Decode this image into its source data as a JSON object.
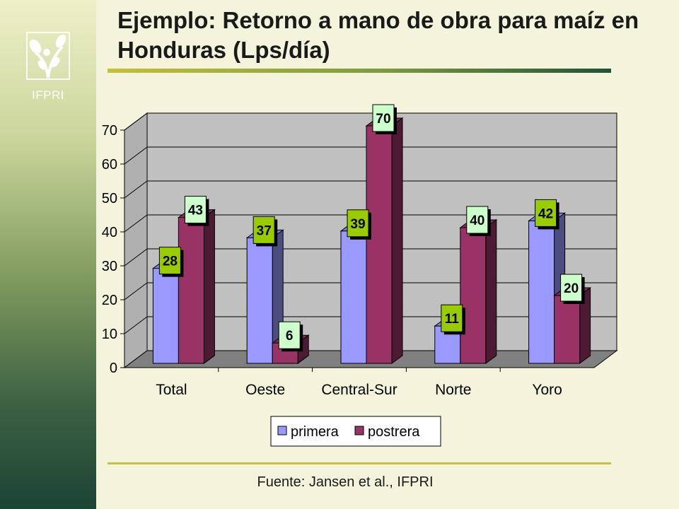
{
  "slide": {
    "title": "Ejemplo: Retorno a mano de obra para maíz en Honduras (Lps/día)",
    "logo_text": "IFPRI",
    "source": "Fuente: Jansen et al., IFPRI"
  },
  "chart_data": {
    "type": "bar",
    "title": "",
    "xlabel": "",
    "ylabel": "",
    "categories": [
      "Total",
      "Oeste",
      "Central-Sur",
      "Norte",
      "Yoro"
    ],
    "series": [
      {
        "name": "primera",
        "values": [
          28,
          37,
          39,
          11,
          42
        ],
        "color": "#9999ff",
        "label_color": "#99cc00"
      },
      {
        "name": "postrera",
        "values": [
          43,
          6,
          70,
          40,
          20
        ],
        "color": "#993366",
        "label_color": "#ccffcc"
      }
    ],
    "ylim": [
      0,
      70
    ],
    "yticks": [
      0,
      10,
      20,
      30,
      40,
      50,
      60,
      70
    ],
    "grid": true,
    "legend": "bottom-center",
    "data_labels": true,
    "style": "3d-clustered",
    "colors": {
      "wall": "#c0c0c0",
      "floor": "#808080"
    }
  }
}
